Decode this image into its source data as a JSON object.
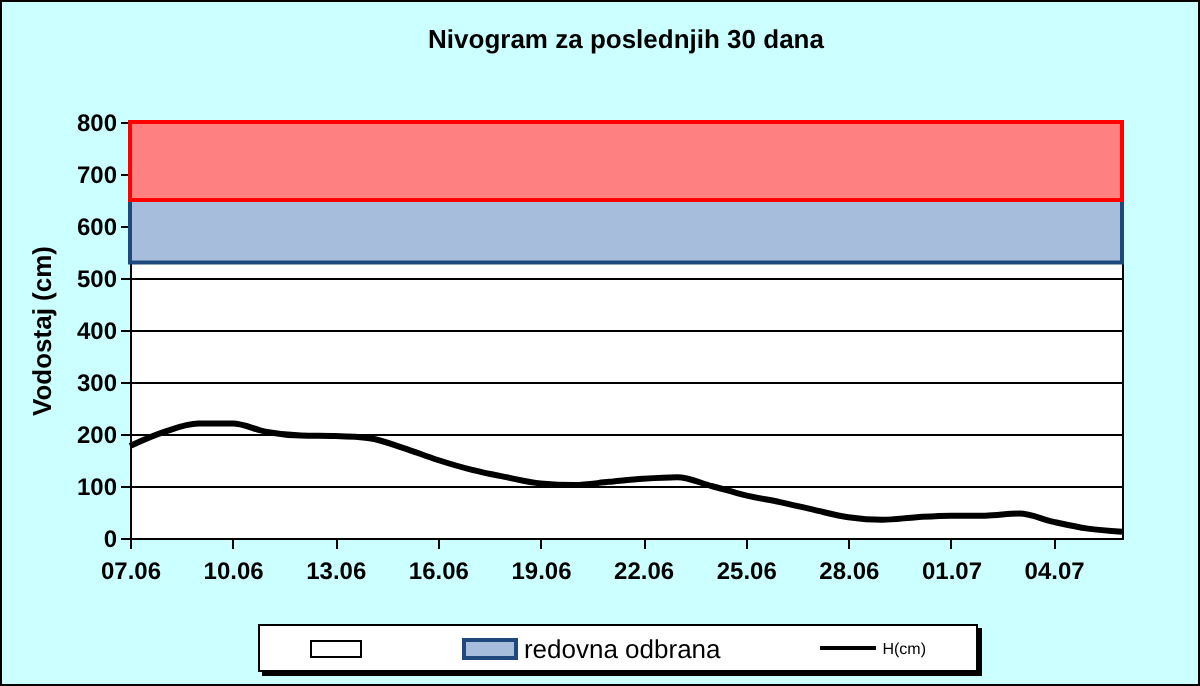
{
  "chart_data": {
    "type": "line",
    "title": "Nivogram za poslednjih 30 dana",
    "ylabel": "Vodostaj (cm)",
    "x": [
      "--06-07",
      "--06-08",
      "--06-09",
      "--06-10",
      "--06-11",
      "--06-12",
      "--06-13",
      "--06-14",
      "--06-15",
      "--06-16",
      "--06-17",
      "--06-18",
      "--06-19",
      "--06-20",
      "--06-21",
      "--06-22",
      "--06-23",
      "--06-24",
      "--06-25",
      "--06-26",
      "--06-27",
      "--06-28",
      "--06-29",
      "--06-30",
      "--07-01",
      "--07-02",
      "--07-03",
      "--07-04",
      "--07-05",
      "--07-06"
    ],
    "series": [
      {
        "name": "H(cm)",
        "color": "#000000",
        "values": [
          177,
          204,
          220,
          220,
          204,
          197,
          196,
          192,
          173,
          150,
          131,
          117,
          105,
          102,
          108,
          114,
          117,
          100,
          82,
          69,
          54,
          40,
          35,
          40,
          43,
          43,
          47,
          31,
          18,
          12
        ]
      }
    ],
    "xlim": [
      "--06-07",
      "--07-06"
    ],
    "xticks": [
      {
        "value": "--06-07",
        "label": "07.06"
      },
      {
        "value": "--06-10",
        "label": "10.06"
      },
      {
        "value": "--06-13",
        "label": "13.06"
      },
      {
        "value": "--06-16",
        "label": "16.06"
      },
      {
        "value": "--06-19",
        "label": "19.06"
      },
      {
        "value": "--06-22",
        "label": "22.06"
      },
      {
        "value": "--06-25",
        "label": "25.06"
      },
      {
        "value": "--06-28",
        "label": "28.06"
      },
      {
        "value": "--07-01",
        "label": "01.07"
      },
      {
        "value": "--07-04",
        "label": "04.07"
      }
    ],
    "ylim": [
      0,
      800
    ],
    "yticks": [
      0,
      100,
      200,
      300,
      400,
      500,
      600,
      700,
      800
    ],
    "bands": [
      {
        "axis": "y",
        "from": 530,
        "to": 650,
        "label": "redovna odbrana",
        "color": "#a6bedc"
      },
      {
        "axis": "y",
        "from": 650,
        "to": 800,
        "color": "#ff8080"
      }
    ],
    "grid": "y",
    "legend": "bottom",
    "line_style": "solid",
    "marker": "none"
  }
}
